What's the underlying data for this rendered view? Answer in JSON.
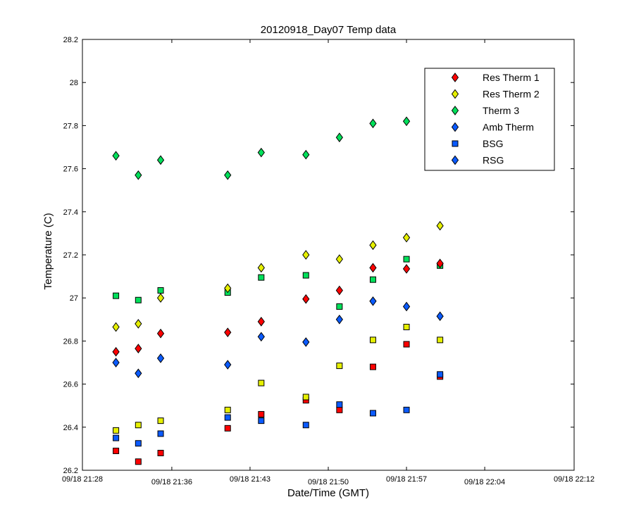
{
  "chart_data": {
    "type": "scatter",
    "title": "20120918_Day07 Temp data",
    "xlabel": "Date/Time (GMT)",
    "ylabel": "Temperature (C)",
    "xlim": [
      "09/18 21:28",
      "09/18 22:12"
    ],
    "ylim": [
      26.2,
      28.2
    ],
    "x_ticks_bottom": [
      "09/18 21:28",
      "09/18 21:43",
      "09/18 21:57",
      "09/18 22:12"
    ],
    "x_ticks_top": [
      "09/18 21:36",
      "09/18 21:50",
      "09/18 22:04"
    ],
    "y_ticks": [
      "26.2",
      "26.4",
      "26.6",
      "26.8",
      "27",
      "27.2",
      "27.4",
      "27.6",
      "27.8",
      "28",
      "28.2"
    ],
    "grid": false,
    "legend_position": "top-right",
    "x": [
      "09/18 21:31",
      "09/18 21:33",
      "09/18 21:35",
      "09/18 21:41",
      "09/18 21:44",
      "09/18 21:48",
      "09/18 21:51",
      "09/18 21:54",
      "09/18 21:57",
      "09/18 22:00"
    ],
    "series": [
      {
        "name": "Res Therm 1",
        "marker": "diamond",
        "color": "#ff0000",
        "values": [
          26.75,
          26.765,
          26.835,
          26.84,
          26.89,
          26.995,
          27.035,
          27.14,
          27.135,
          27.16
        ]
      },
      {
        "name": "Res Therm 2",
        "marker": "diamond",
        "color": "#e6f000",
        "values": [
          26.865,
          26.88,
          27.0,
          27.045,
          27.14,
          27.2,
          27.18,
          27.245,
          27.28,
          27.335
        ]
      },
      {
        "name": "Therm 3",
        "marker": "diamond",
        "color": "#00e05a",
        "values": [
          27.66,
          27.57,
          27.64,
          27.57,
          27.675,
          27.665,
          27.745,
          27.81,
          27.82,
          null
        ]
      },
      {
        "name": "Amb Therm",
        "marker": "diamond",
        "color": "#0a5aff",
        "values": [
          26.7,
          26.65,
          26.72,
          26.69,
          26.82,
          26.795,
          26.9,
          26.985,
          26.96,
          26.915
        ]
      },
      {
        "name": "BSG",
        "marker": "square",
        "color": "#0a5aff",
        "values": [
          26.35,
          26.325,
          26.37,
          26.445,
          26.43,
          26.41,
          26.505,
          26.465,
          26.48,
          26.645
        ]
      },
      {
        "name": "RSG",
        "marker": "diamond",
        "color": "#0a5aff",
        "values": [
          null,
          null,
          null,
          null,
          null,
          null,
          null,
          null,
          null,
          null
        ]
      }
    ],
    "unlabeled_series": [
      {
        "marker": "square",
        "color": "#ff0000",
        "values": [
          26.29,
          26.24,
          26.28,
          26.395,
          26.46,
          26.525,
          26.48,
          26.68,
          26.785,
          26.635
        ]
      },
      {
        "marker": "square",
        "color": "#e6f000",
        "values": [
          26.385,
          26.41,
          26.43,
          26.48,
          26.605,
          26.54,
          26.685,
          26.805,
          26.865,
          26.805
        ]
      },
      {
        "marker": "square",
        "color": "#00e05a",
        "values": [
          27.01,
          26.99,
          27.035,
          27.025,
          27.095,
          27.105,
          26.96,
          27.085,
          27.18,
          27.15
        ]
      }
    ]
  }
}
